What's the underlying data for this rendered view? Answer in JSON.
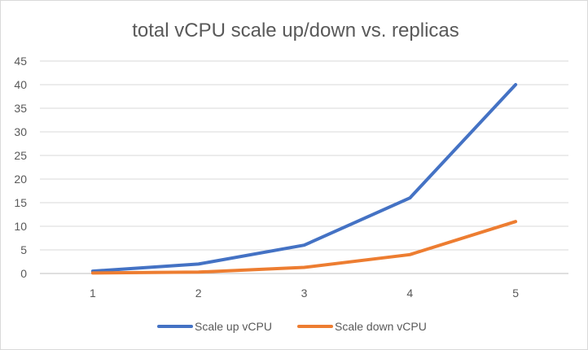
{
  "chart_data": {
    "type": "line",
    "title": "total vCPU scale up/down vs. replicas",
    "xlabel": "",
    "ylabel": "",
    "x": [
      1,
      2,
      3,
      4,
      5
    ],
    "ylim": [
      0,
      45
    ],
    "yticks": [
      0,
      5,
      10,
      15,
      20,
      25,
      30,
      35,
      40,
      45
    ],
    "grid": true,
    "legend_position": "bottom",
    "series": [
      {
        "name": "Scale up vCPU",
        "color": "#4472C4",
        "values": [
          0.5,
          2,
          6,
          16,
          40
        ]
      },
      {
        "name": "Scale down vCPU",
        "color": "#ED7D31",
        "values": [
          0.1,
          0.3,
          1.3,
          4,
          11
        ]
      }
    ]
  }
}
